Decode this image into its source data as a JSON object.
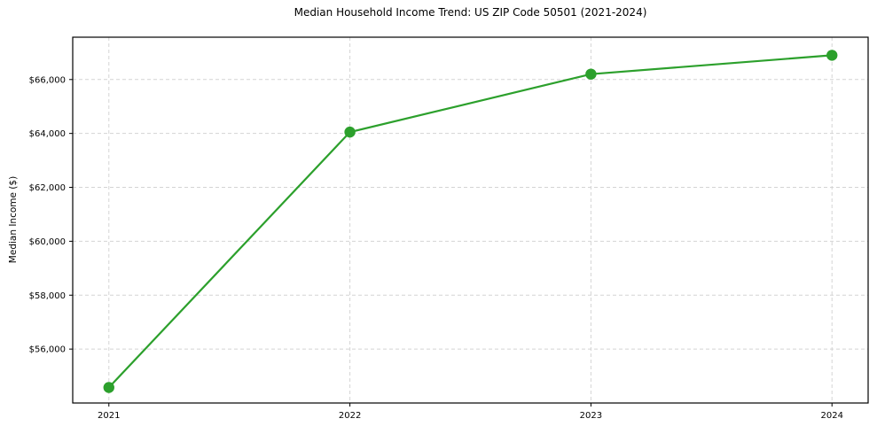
{
  "page": {
    "background_color": "#ffffff"
  },
  "chart_data": {
    "type": "line",
    "title": "Median Household Income Trend: US ZIP Code 50501 (2021-2024)",
    "xlabel": "",
    "ylabel": "Median Income ($)",
    "x": [
      2021,
      2022,
      2023,
      2024
    ],
    "values": [
      54575,
      64050,
      66200,
      66900
    ],
    "line_color": "#2ca02c",
    "marker": "circle",
    "xlim": [
      2020.85,
      2024.15
    ],
    "ylim": [
      54000,
      67570
    ],
    "xticks": {
      "values": [
        2021,
        2022,
        2023,
        2024
      ],
      "labels": [
        "2021",
        "2022",
        "2023",
        "2024"
      ]
    },
    "yticks": {
      "values": [
        56000,
        58000,
        60000,
        62000,
        64000,
        66000
      ],
      "labels": [
        "$56,000",
        "$58,000",
        "$60,000",
        "$62,000",
        "$64,000",
        "$66,000"
      ]
    },
    "grid": {
      "visible": true,
      "style": "dashed",
      "color": "#d4d4d4",
      "axes": "both"
    },
    "legend": {
      "visible": false
    }
  }
}
